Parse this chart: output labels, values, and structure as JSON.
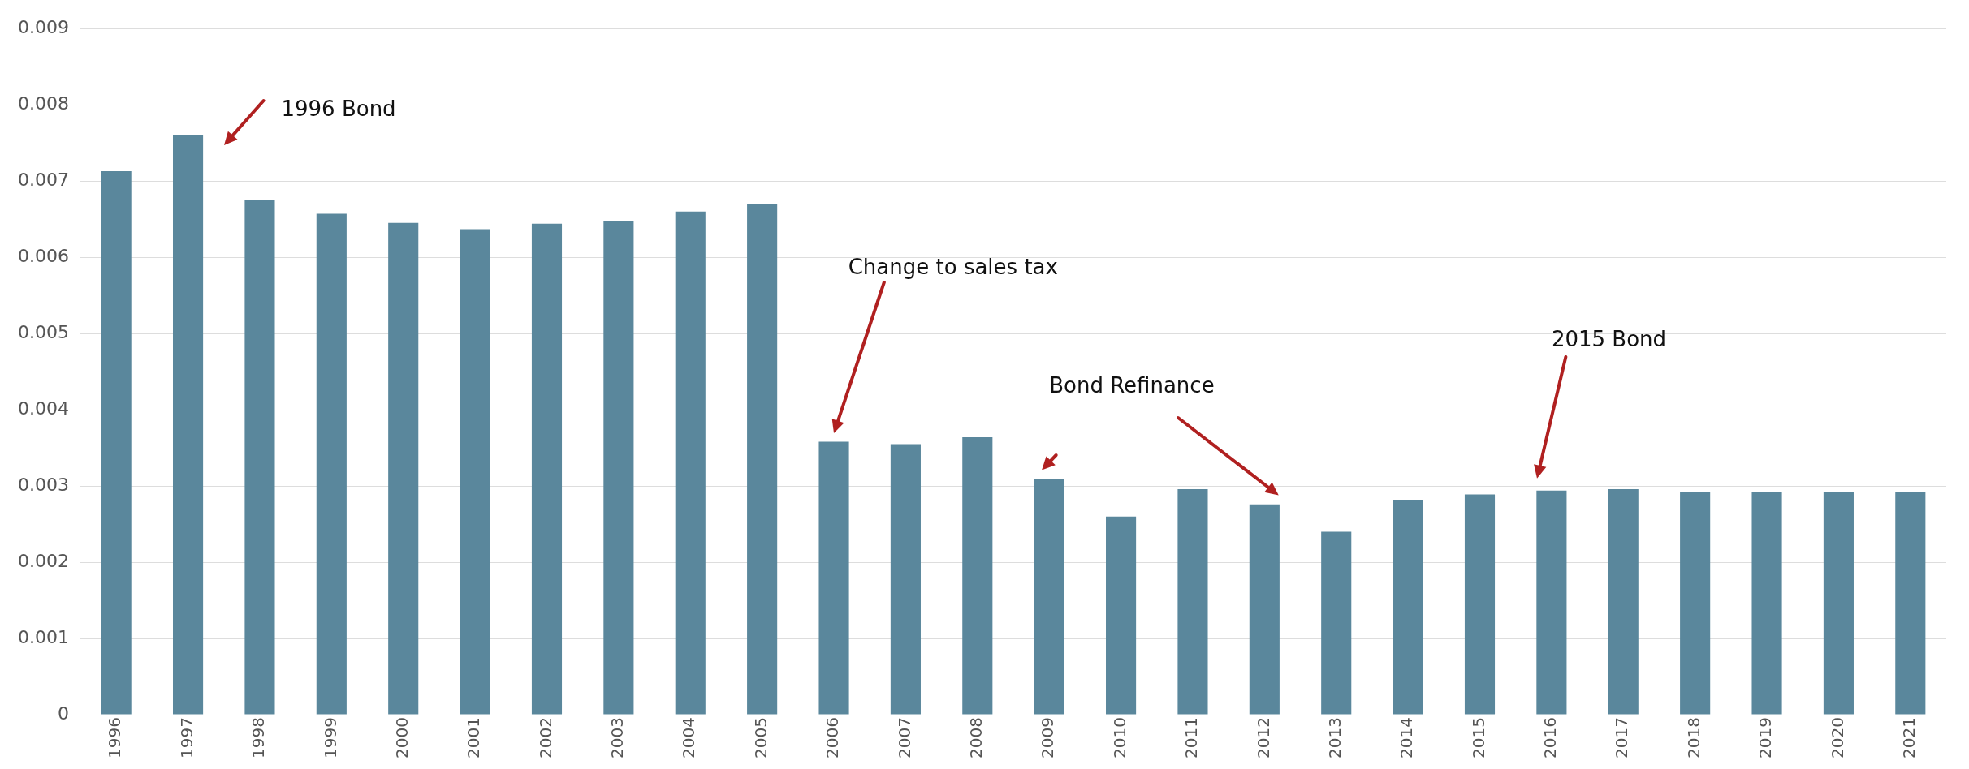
{
  "chart_data": {
    "type": "bar",
    "categories": [
      "1996",
      "1997",
      "1998",
      "1999",
      "2000",
      "2001",
      "2002",
      "2003",
      "2004",
      "2005",
      "2006",
      "2007",
      "2008",
      "2009",
      "2010",
      "2011",
      "2012",
      "2013",
      "2014",
      "2015",
      "2016",
      "2017",
      "2018",
      "2019",
      "2020",
      "2021"
    ],
    "values": [
      0.00713,
      0.0076,
      0.00675,
      0.00657,
      0.00645,
      0.00637,
      0.00644,
      0.00647,
      0.0066,
      0.0067,
      0.00358,
      0.00355,
      0.00364,
      0.00309,
      0.0026,
      0.00296,
      0.00276,
      0.0024,
      0.00281,
      0.00289,
      0.00294,
      0.00296,
      0.00292,
      0.00292,
      0.00292,
      0.00292
    ],
    "color": "#5a879c",
    "ylim": [
      0,
      0.009
    ],
    "yticks": [
      0,
      0.001,
      0.002,
      0.003,
      0.004,
      0.005,
      0.006,
      0.007,
      0.008,
      0.009
    ],
    "grid": "y",
    "legend": false,
    "annotations": [
      "1996 Bond",
      "Change to sales tax",
      "Bond Refinance",
      "2015 Bond"
    ]
  }
}
